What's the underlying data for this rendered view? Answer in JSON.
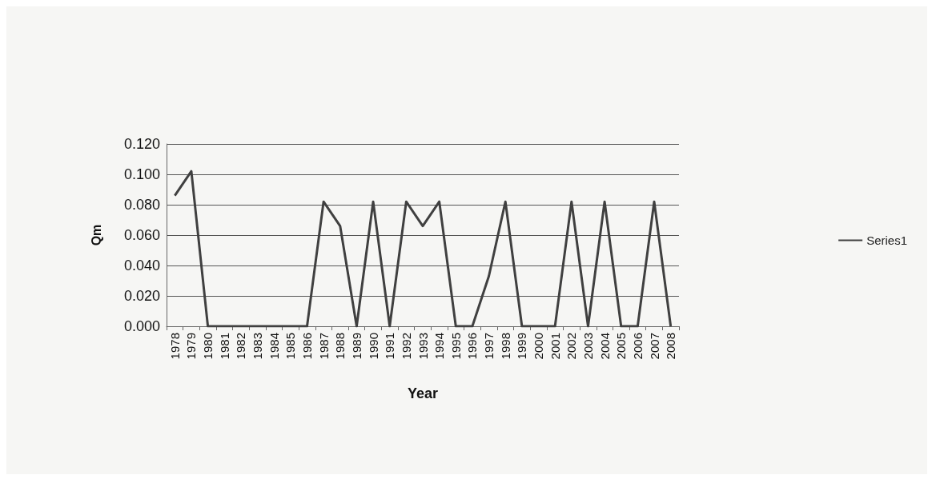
{
  "chart_data": {
    "type": "line",
    "xlabel": "Year",
    "ylabel": "Qm",
    "categories": [
      "1978",
      "1979",
      "1980",
      "1981",
      "1982",
      "1983",
      "1984",
      "1985",
      "1986",
      "1987",
      "1988",
      "1989",
      "1990",
      "1991",
      "1992",
      "1993",
      "1994",
      "1995",
      "1996",
      "1997",
      "1998",
      "1999",
      "2000",
      "2001",
      "2002",
      "2003",
      "2004",
      "2005",
      "2006",
      "2007",
      "2008"
    ],
    "series": [
      {
        "name": "Series1",
        "color": "#404040",
        "values": [
          0.086,
          0.102,
          0,
          0,
          0,
          0,
          0,
          0,
          0,
          0.082,
          0.066,
          0,
          0.082,
          0,
          0.082,
          0.066,
          0.082,
          0,
          0,
          0.033,
          0.082,
          0,
          0,
          0,
          0.082,
          0,
          0.082,
          0,
          0,
          0.082,
          0
        ]
      }
    ],
    "ylim": [
      0,
      0.12
    ],
    "yticks": [
      {
        "value": 0,
        "label": "0.000"
      },
      {
        "value": 0.02,
        "label": "0.020"
      },
      {
        "value": 0.04,
        "label": "0.040"
      },
      {
        "value": 0.06,
        "label": "0.060"
      },
      {
        "value": 0.08,
        "label": "0.080"
      },
      {
        "value": 0.1,
        "label": "0.100"
      },
      {
        "value": 0.12,
        "label": "0.120"
      }
    ],
    "grid": "y",
    "legend": "right",
    "marker": "none",
    "line_style": "solid"
  }
}
